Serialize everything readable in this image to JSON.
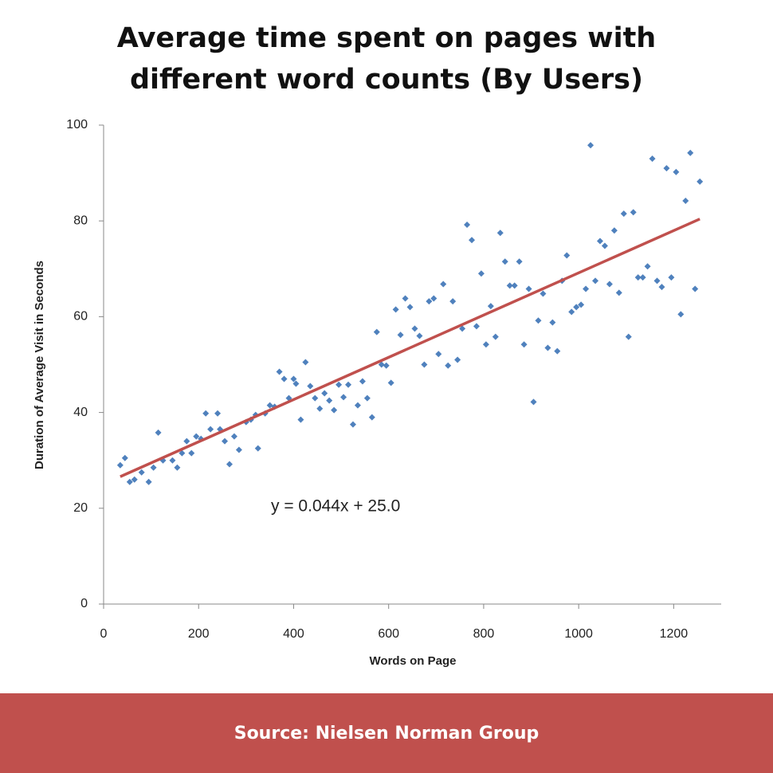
{
  "chart_data": {
    "type": "scatter",
    "title": "Average time spent on pages with different word counts (By Users)",
    "xlabel": "Words on Page",
    "ylabel": "Duration of Average Visit in Seconds",
    "annotation": "y = 0.044x + 25.0",
    "source": "Source: Nielsen Norman Group",
    "xlim": [
      0,
      1300
    ],
    "xticks": [
      0,
      200,
      400,
      600,
      800,
      1000,
      1200
    ],
    "ylim": [
      0,
      100
    ],
    "yticks": [
      0,
      20,
      40,
      60,
      80,
      100
    ],
    "color": "#4f81bd",
    "x": [
      35,
      45,
      55,
      65,
      80,
      95,
      105,
      115,
      125,
      145,
      155,
      165,
      175,
      185,
      195,
      205,
      215,
      225,
      240,
      245,
      255,
      265,
      275,
      285,
      300,
      310,
      320,
      325,
      340,
      350,
      360,
      370,
      380,
      390,
      400,
      405,
      415,
      425,
      435,
      445,
      455,
      465,
      475,
      485,
      495,
      505,
      515,
      525,
      535,
      545,
      555,
      565,
      575,
      585,
      595,
      605,
      615,
      625,
      635,
      645,
      655,
      665,
      675,
      685,
      695,
      705,
      715,
      725,
      735,
      745,
      755,
      765,
      775,
      785,
      795,
      805,
      815,
      825,
      835,
      845,
      855,
      865,
      875,
      885,
      895,
      905,
      915,
      925,
      935,
      945,
      955,
      965,
      975,
      985,
      995,
      1005,
      1015,
      1025,
      1035,
      1045,
      1055,
      1065,
      1075,
      1085,
      1095,
      1105,
      1115,
      1125,
      1135,
      1145,
      1155,
      1165,
      1175,
      1185,
      1195,
      1205,
      1215,
      1225,
      1235,
      1245,
      1255
    ],
    "values": [
      29,
      30.5,
      25.5,
      26,
      27.5,
      25.5,
      28.5,
      35.8,
      30,
      30,
      28.5,
      31.5,
      34,
      31.5,
      35,
      34.5,
      39.8,
      36.5,
      39.8,
      36.5,
      34,
      29.2,
      35,
      32.2,
      38,
      38.5,
      39.5,
      32.5,
      39.8,
      41.5,
      41.2,
      48.5,
      47,
      43,
      47,
      46,
      38.5,
      50.5,
      45.5,
      43,
      40.8,
      44,
      42.5,
      40.5,
      45.8,
      43.2,
      45.8,
      37.5,
      41.5,
      46.5,
      43,
      39,
      56.8,
      50,
      49.8,
      46.2,
      61.5,
      56.2,
      63.8,
      62,
      57.5,
      56,
      50,
      63.2,
      63.8,
      52.2,
      66.8,
      49.8,
      63.2,
      51,
      57.5,
      79.2,
      76,
      58,
      69,
      54.2,
      62.2,
      55.8,
      77.5,
      71.5,
      66.5,
      66.5,
      71.5,
      54.2,
      65.8,
      42.2,
      59.2,
      64.8,
      53.5,
      58.8,
      52.8,
      67.5,
      72.8,
      61,
      62,
      62.5,
      65.8,
      95.8,
      67.5,
      75.8,
      74.8,
      66.8,
      78,
      65,
      81.5,
      55.8,
      81.8,
      68.2,
      68.2,
      70.5,
      93,
      67.5,
      66.2,
      91,
      68.2,
      90.2,
      60.5,
      84.2,
      94.2,
      65.8,
      88.2
    ],
    "trendline": {
      "x": [
        35,
        1255
      ],
      "values": [
        26.6,
        80.4
      ],
      "color": "#c0504d"
    },
    "footer_color": "#c0504d"
  }
}
